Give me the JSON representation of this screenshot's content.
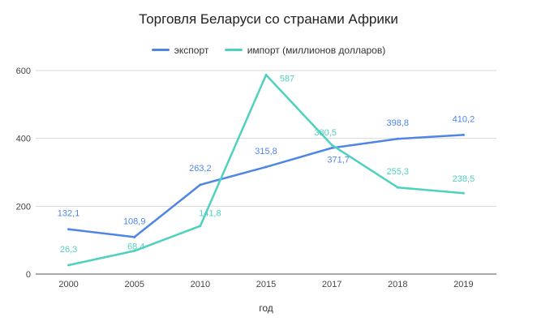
{
  "chart_data": {
    "type": "line",
    "title": "Торговля Беларуси со странами Африки",
    "xlabel": "год",
    "ylabel": "",
    "categories": [
      "2000",
      "2005",
      "2010",
      "2015",
      "2017",
      "2018",
      "2019"
    ],
    "ylim": [
      0,
      600
    ],
    "yticks": [
      "0",
      "200",
      "400",
      "600"
    ],
    "grid": true,
    "legend_position": "top",
    "series": [
      {
        "name": "экспорт",
        "color": "#4f86e6",
        "values": [
          132.1,
          108.9,
          263.2,
          315.8,
          371.7,
          398.8,
          410.2
        ],
        "labels": [
          "132,1",
          "108,9",
          "263,2",
          "315,8",
          "371,7",
          "398,8",
          "410,2"
        ]
      },
      {
        "name": "импорт (миллионов долларов)",
        "color": "#4fd1bf",
        "values": [
          26.3,
          68.4,
          141.8,
          587,
          380.5,
          255.3,
          238.5
        ],
        "labels": [
          "26,3",
          "68,4",
          "141,8",
          "587",
          "380,5",
          "255,3",
          "238,5"
        ]
      }
    ]
  }
}
